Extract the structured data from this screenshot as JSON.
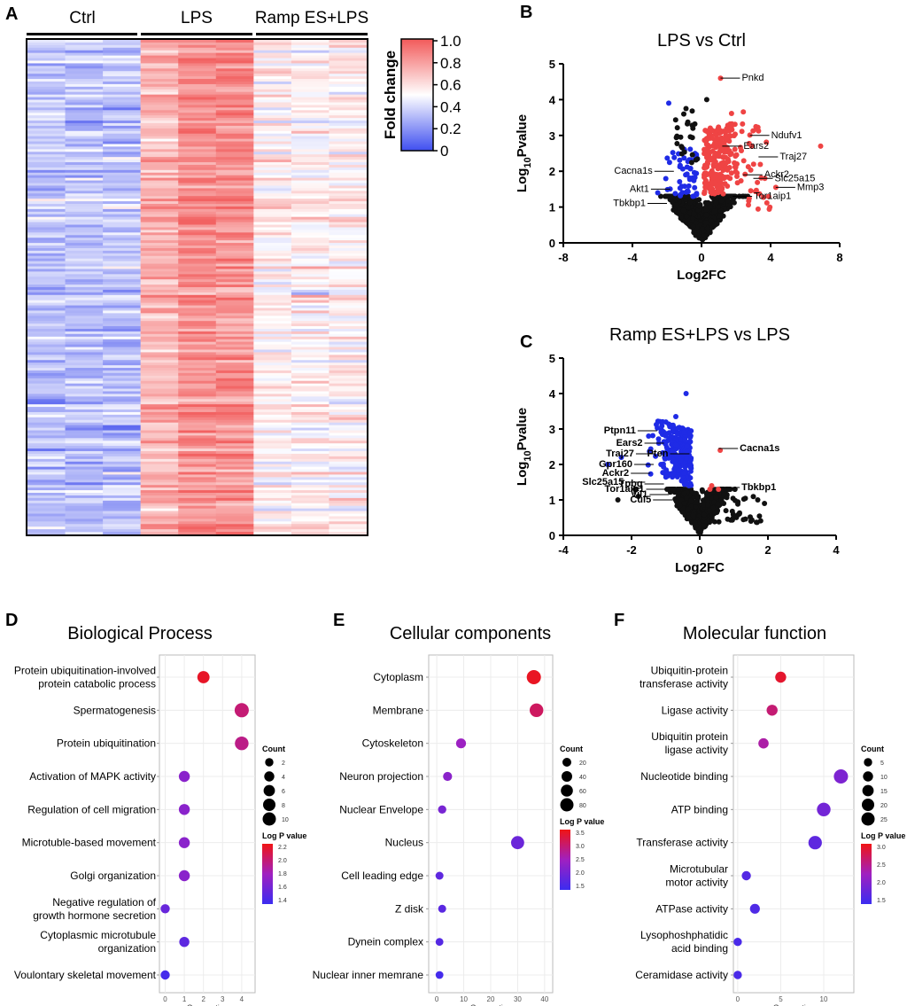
{
  "colors": {
    "red": "#ef4444",
    "blue": "#1f2be6",
    "black": "#111111",
    "heat_low": "#4a57ee",
    "heat_mid": "#ffffff",
    "heat_high": "#f26262",
    "pval_low": "#3b2cf0",
    "pval_mid": "#a020c0",
    "pval_high": "#f01414"
  },
  "heatmap": {
    "panel": "A",
    "groups": [
      "Ctrl",
      "LPS",
      "Ramp ES+LPS"
    ],
    "legend_title": "Fold change",
    "legend_ticks": [
      "1.0",
      "0.8",
      "0.6",
      "0.4",
      "0.2",
      "0"
    ]
  },
  "volcanoes": [
    {
      "panel": "B",
      "title": "LPS vs Ctrl",
      "xlabel": "Log2FC",
      "ylabel_base": "Log",
      "ylabel_sub": "10",
      "ylabel_rest": "Pvalue",
      "xticks": [
        "-8",
        "-4",
        "0",
        "4",
        "8"
      ],
      "yticks": [
        "0",
        "1",
        "2",
        "3",
        "4",
        "5"
      ],
      "xlim": [
        -8,
        8
      ],
      "ylim": [
        0,
        5
      ],
      "highlight": "up",
      "labels": [
        {
          "text": "Pnkd",
          "x": 1.1,
          "y": 4.6
        },
        {
          "text": "Ears2",
          "x": 1.2,
          "y": 2.7
        },
        {
          "text": "Ndufv1",
          "x": 2.8,
          "y": 3.0
        },
        {
          "text": "Traj27",
          "x": 3.3,
          "y": 2.4
        },
        {
          "text": "Ackr2",
          "x": 2.4,
          "y": 1.9
        },
        {
          "text": "Slc25a15",
          "x": 3.0,
          "y": 1.8
        },
        {
          "text": "Mmp3",
          "x": 4.3,
          "y": 1.55
        },
        {
          "text": "Tor1aip1",
          "x": 1.8,
          "y": 1.3
        },
        {
          "text": "Cacna1s",
          "x": -1.6,
          "y": 2.0
        },
        {
          "text": "Akt1",
          "x": -1.8,
          "y": 1.5
        },
        {
          "text": "Tbkbp1",
          "x": -2.0,
          "y": 1.1
        }
      ]
    },
    {
      "panel": "C",
      "title": "Ramp ES+LPS vs LPS",
      "xlabel": "Log2FC",
      "ylabel_base": "Log",
      "ylabel_sub": "10",
      "ylabel_rest": "Pvalue",
      "xticks": [
        "-4",
        "-2",
        "0",
        "2",
        "4"
      ],
      "yticks": [
        "0",
        "1",
        "2",
        "3",
        "4",
        "5"
      ],
      "xlim": [
        -4,
        4
      ],
      "ylim": [
        0,
        5
      ],
      "highlight": "down",
      "labels": [
        {
          "text": "Ptpn11",
          "x": -1.25,
          "y": 2.95
        },
        {
          "text": "Ears2",
          "x": -1.05,
          "y": 2.6
        },
        {
          "text": "Pten",
          "x": -0.3,
          "y": 2.3
        },
        {
          "text": "Traj27",
          "x": -1.3,
          "y": 2.3
        },
        {
          "text": "Gpr160",
          "x": -1.35,
          "y": 2.0
        },
        {
          "text": "Ackr2",
          "x": -1.45,
          "y": 1.75
        },
        {
          "text": "Cacna1s",
          "x": 0.55,
          "y": 2.45
        },
        {
          "text": "Slc25a15",
          "x": -1.6,
          "y": 1.5
        },
        {
          "text": "Tpbg",
          "x": -1.05,
          "y": 1.45
        },
        {
          "text": "Tor1aip1",
          "x": -1.0,
          "y": 1.3
        },
        {
          "text": "Vil1",
          "x": -0.9,
          "y": 1.15
        },
        {
          "text": "Tbkbp1",
          "x": 0.6,
          "y": 1.35
        },
        {
          "text": "Cul5",
          "x": -0.8,
          "y": 1.0
        }
      ]
    }
  ],
  "chart_data": [
    {
      "type": "heatmap",
      "panel": "A",
      "columns": [
        "Ctrl",
        "Ctrl",
        "Ctrl",
        "LPS",
        "LPS",
        "LPS",
        "Ramp ES+LPS",
        "Ramp ES+LPS",
        "Ramp ES+LPS"
      ],
      "value_label": "Fold change",
      "range": [
        0,
        1.0
      ],
      "group_means": [
        0.32,
        0.86,
        0.55
      ]
    },
    {
      "type": "scatter",
      "panel": "B",
      "title": "LPS vs Ctrl",
      "xlabel": "Log2FC",
      "ylabel": "Log10Pvalue",
      "xlim": [
        -8,
        8
      ],
      "ylim": [
        0,
        5
      ]
    },
    {
      "type": "scatter",
      "panel": "C",
      "title": "Ramp ES+LPS vs LPS",
      "xlabel": "Log2FC",
      "ylabel": "Log10Pvalue",
      "xlim": [
        -4,
        4
      ],
      "ylim": [
        0,
        5
      ]
    },
    {
      "type": "scatter",
      "panel": "D",
      "title": "Biological Process",
      "xlabel": "Gene ratios",
      "xticks": [
        "0",
        "1",
        "2",
        "3",
        "4"
      ],
      "xlim": [
        -0.3,
        4.7
      ],
      "categories": [
        "Protein ubiquitination-involved\nprotein catabolic process",
        "Spermatogenesis",
        "Protein ubiquitination",
        "Activation of MAPK activity",
        "Regulation of cell migration",
        "Microtuble-based movement",
        "Golgi organization",
        "Negative regulation of\ngrowth hormone secretion",
        "Cytoplasmic microtubule\norganization",
        "Voulontary skeletal movement"
      ],
      "x": [
        2,
        4,
        4,
        1,
        1,
        1,
        1,
        0,
        1,
        0
      ],
      "count": [
        6,
        10,
        9,
        4,
        4,
        4,
        4,
        2,
        3,
        2
      ],
      "logp": [
        2.2,
        2.0,
        1.95,
        1.7,
        1.7,
        1.7,
        1.7,
        1.55,
        1.5,
        1.4
      ],
      "count_legend": {
        "title": "Count",
        "values": [
          "2",
          "4",
          "6",
          "8",
          "10"
        ]
      },
      "color_legend": {
        "title": "Log P value",
        "ticks": [
          "2.2",
          "2.0",
          "1.8",
          "1.6",
          "1.4"
        ],
        "range": [
          1.35,
          2.25
        ]
      }
    },
    {
      "type": "scatter",
      "panel": "E",
      "title": "Cellular components",
      "xlabel": "Gene ratios",
      "xticks": [
        "0",
        "10",
        "20",
        "30",
        "40"
      ],
      "xlim": [
        -3,
        43
      ],
      "categories": [
        "Cytoplasm",
        "Membrane",
        "Cytoskeleton",
        "Neuron projection",
        "Nuclear Envelope",
        "Nucleus",
        "Cell leading edge",
        "Z disk",
        "Dynein complex",
        "Nuclear inner memrane"
      ],
      "x": [
        36,
        37,
        9,
        4,
        2,
        30,
        1,
        2,
        1,
        1
      ],
      "count": [
        90,
        80,
        25,
        16,
        10,
        70,
        8,
        8,
        7,
        7
      ],
      "logp": [
        3.6,
        3.2,
        2.5,
        2.3,
        2.1,
        1.95,
        1.8,
        1.75,
        1.7,
        1.5
      ],
      "count_legend": {
        "title": "Count",
        "values": [
          "20",
          "40",
          "60",
          "80"
        ]
      },
      "color_legend": {
        "title": "Log P value",
        "ticks": [
          "3.5",
          "3.0",
          "2.5",
          "2.0",
          "1.5"
        ],
        "range": [
          1.4,
          3.7
        ]
      }
    },
    {
      "type": "scatter",
      "panel": "F",
      "title": "Molecular function",
      "xlabel": "Gene ratios",
      "xticks": [
        "0",
        "5",
        "10"
      ],
      "xlim": [
        -0.5,
        13.5
      ],
      "categories": [
        "Ubiquitin-protein\ntransferase activity",
        "Ligase activity",
        "Ubiquitin protein\nligase activity",
        "Nucleotide binding",
        "ATP binding",
        "Transferase activity",
        "Microtubular\nmotor activity",
        "ATPase activity",
        "Lysophoshphatidic\nacid binding",
        "Ceramidase activity"
      ],
      "x": [
        5,
        4,
        3,
        12,
        10,
        9,
        1,
        2,
        0,
        0
      ],
      "count": [
        10,
        10,
        8,
        25,
        22,
        21,
        5,
        7,
        3,
        3
      ],
      "logp": [
        3.2,
        2.8,
        2.5,
        2.0,
        1.9,
        1.7,
        1.6,
        1.55,
        1.5,
        1.5
      ],
      "count_legend": {
        "title": "Count",
        "values": [
          "5",
          "10",
          "15",
          "20",
          "25"
        ]
      },
      "color_legend": {
        "title": "Log P value",
        "ticks": [
          "3.0",
          "2.5",
          "2.0",
          "1.5"
        ],
        "range": [
          1.35,
          3.35
        ]
      }
    }
  ]
}
